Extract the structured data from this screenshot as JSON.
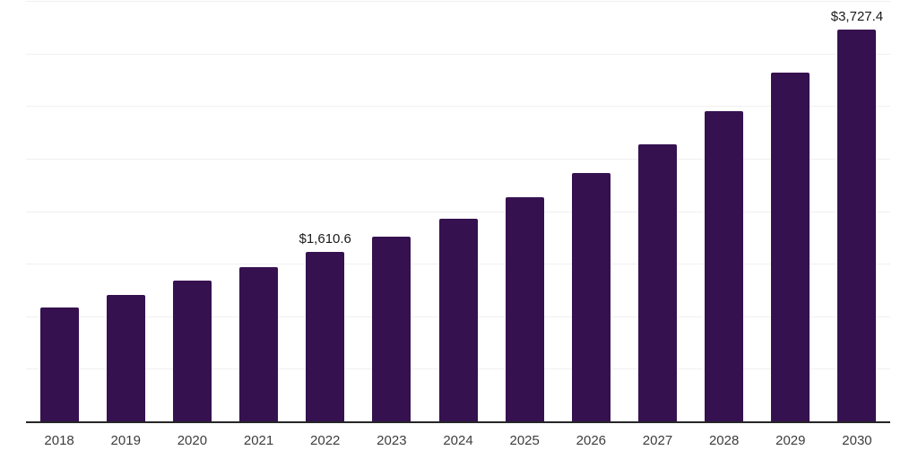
{
  "chart_data": {
    "type": "bar",
    "title": "",
    "xlabel": "",
    "ylabel": "",
    "categories": [
      "2018",
      "2019",
      "2020",
      "2021",
      "2022",
      "2023",
      "2024",
      "2025",
      "2026",
      "2027",
      "2028",
      "2029",
      "2030"
    ],
    "values": [
      1085,
      1200,
      1340,
      1465,
      1610.6,
      1755,
      1930,
      2135,
      2365,
      2635,
      2950,
      3315,
      3727.4
    ],
    "point_labels": [
      "",
      "",
      "",
      "",
      "$1,610.6",
      "",
      "",
      "",
      "",
      "",
      "",
      "",
      "$3,727.4"
    ],
    "ylim": [
      0,
      4000
    ],
    "gridline_interval": 500,
    "grid": "horizontal",
    "legend_position": "none",
    "bar_color": "#361150",
    "axis_line_color": "#262626",
    "gridline_color": "#f0f0f1",
    "value_label_color": "#1a1a1a",
    "tick_label_color": "#3d3d3d"
  }
}
